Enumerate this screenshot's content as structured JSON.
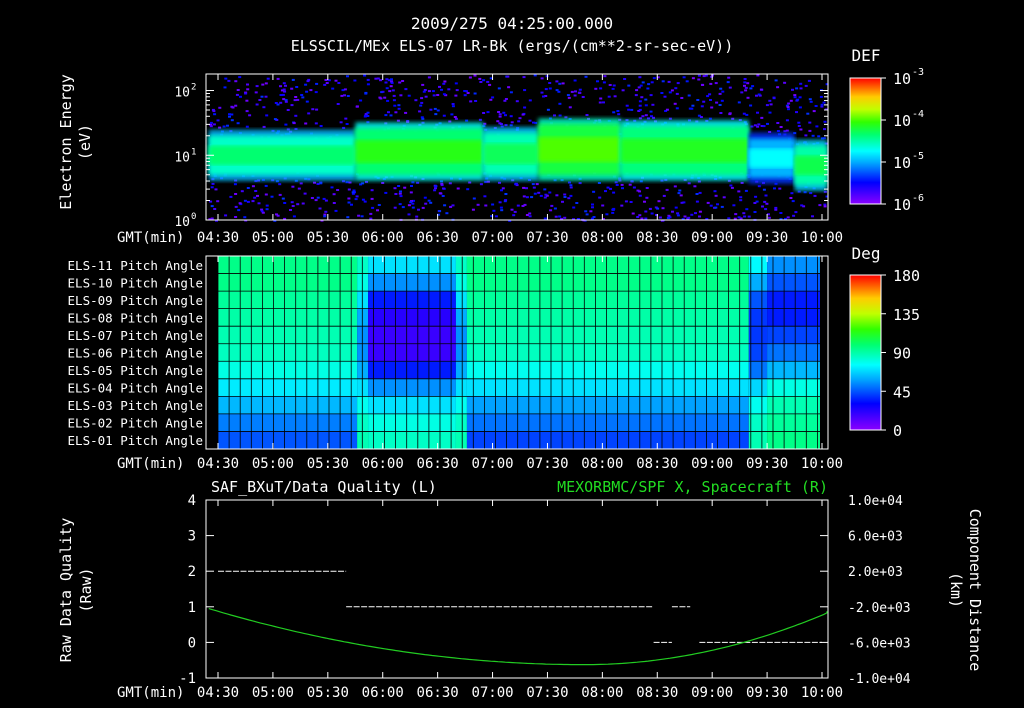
{
  "header": {
    "datetime": "2009/275 04:25:00.000",
    "subtitle": "ELSSCIL/MEx ELS-07 LR-Bk  (ergs/(cm**2-sr-sec-eV))"
  },
  "time_axis": {
    "label": "GMT(min)",
    "ticks": [
      "04:30",
      "05:00",
      "05:30",
      "06:00",
      "06:30",
      "07:00",
      "07:30",
      "08:00",
      "08:30",
      "09:00",
      "09:30",
      "10:00"
    ]
  },
  "chart_data": [
    {
      "type": "heatmap",
      "name": "energy-spectrogram",
      "ylabel": [
        "Electron Energy",
        "(eV)"
      ],
      "y_scale": "log",
      "ylim": [
        1,
        180
      ],
      "ytick_labels": [
        {
          "base": "10",
          "exp": "0",
          "value": 1
        },
        {
          "base": "10",
          "exp": "1",
          "value": 10
        },
        {
          "base": "10",
          "exp": "2",
          "value": 100
        }
      ],
      "colorbar": {
        "title": "DEF",
        "labels": [
          {
            "base": "10",
            "exp": "-3"
          },
          {
            "base": "10",
            "exp": "-4"
          },
          {
            "base": "10",
            "exp": "-5"
          },
          {
            "base": "10",
            "exp": "-6"
          }
        ]
      },
      "band_segments_hhmm": [
        {
          "from": "04:25",
          "to": "05:45",
          "low_eV": 5.0,
          "high_eV": 20,
          "level": 0.55
        },
        {
          "from": "05:45",
          "to": "06:55",
          "low_eV": 5.0,
          "high_eV": 26,
          "level": 0.63
        },
        {
          "from": "06:55",
          "to": "07:25",
          "low_eV": 5.0,
          "high_eV": 22,
          "level": 0.57
        },
        {
          "from": "07:25",
          "to": "08:10",
          "low_eV": 5.0,
          "high_eV": 30,
          "level": 0.67
        },
        {
          "from": "08:10",
          "to": "09:20",
          "low_eV": 5.0,
          "high_eV": 28,
          "level": 0.62
        },
        {
          "from": "09:20",
          "to": "09:45",
          "low_eV": 4.5,
          "high_eV": 18,
          "level": 0.42
        },
        {
          "from": "09:45",
          "to": "10:05",
          "low_eV": 3.5,
          "high_eV": 14,
          "level": 0.58
        }
      ]
    },
    {
      "type": "heatmap",
      "name": "pitch-angle",
      "colorbar": {
        "title": "Deg",
        "labels": [
          "180",
          "135",
          "90",
          "45",
          "0"
        ]
      },
      "rows": [
        "ELS-11 Pitch Angle",
        "ELS-10 Pitch Angle",
        "ELS-09 Pitch Angle",
        "ELS-08 Pitch Angle",
        "ELS-07 Pitch Angle",
        "ELS-06 Pitch Angle",
        "ELS-05 Pitch Angle",
        "ELS-04 Pitch Angle",
        "ELS-03 Pitch Angle",
        "ELS-02 Pitch Angle",
        "ELS-01 Pitch Angle"
      ],
      "segments_hhmm": [
        "04:25-05:46",
        "05:46-05:52",
        "05:52-06:40",
        "06:40-06:46",
        "06:46-09:20",
        "09:20-09:30",
        "09:30-10:02"
      ],
      "values_deg": [
        [
          95,
          85,
          70,
          85,
          95,
          75,
          55
        ],
        [
          95,
          80,
          55,
          80,
          95,
          60,
          45
        ],
        [
          92,
          70,
          35,
          70,
          92,
          45,
          35
        ],
        [
          90,
          60,
          22,
          60,
          90,
          40,
          35
        ],
        [
          88,
          55,
          18,
          55,
          88,
          40,
          42
        ],
        [
          86,
          55,
          18,
          55,
          86,
          42,
          50
        ],
        [
          80,
          60,
          35,
          60,
          78,
          50,
          62
        ],
        [
          72,
          70,
          55,
          70,
          70,
          68,
          80
        ],
        [
          62,
          78,
          70,
          78,
          58,
          78,
          88
        ],
        [
          52,
          85,
          80,
          85,
          50,
          85,
          92
        ],
        [
          45,
          88,
          85,
          88,
          42,
          88,
          95
        ]
      ]
    },
    {
      "type": "line",
      "name": "data-quality-and-distance",
      "title_left": "SAF_BXuT/Data Quality (L)",
      "title_right": "MEXORBMC/SPF X, Spacecraft (R)",
      "ylabel_left": [
        "Raw Data Quality",
        "(Raw)"
      ],
      "ylim_left": [
        -1,
        4
      ],
      "yticks_left": [
        "4",
        "3",
        "2",
        "1",
        "0",
        "-1"
      ],
      "ylabel_right": [
        "Component Distance",
        "(km)"
      ],
      "ylim_right": [
        -10000,
        10000
      ],
      "yticks_right": [
        "1.0e+04",
        "6.0e+03",
        "2.0e+03",
        "-2.0e+03",
        "-6.0e+03",
        "-1.0e+04"
      ],
      "quality_segments_hhmm": [
        {
          "from": "04:30",
          "to": "05:40",
          "value": 2
        },
        {
          "from": "05:40",
          "to": "08:28",
          "value": 1
        },
        {
          "from": "08:38",
          "to": "08:48",
          "value": 1
        },
        {
          "from": "08:28",
          "to": "08:38",
          "value": 0
        },
        {
          "from": "08:53",
          "to": "10:00",
          "value": 0
        }
      ],
      "distance_curve": {
        "start": {
          "t": "04:25",
          "km": -2200
        },
        "min": {
          "t": "07:50",
          "km": -8500
        },
        "end": {
          "t": "10:05",
          "km": -2500
        }
      }
    }
  ]
}
